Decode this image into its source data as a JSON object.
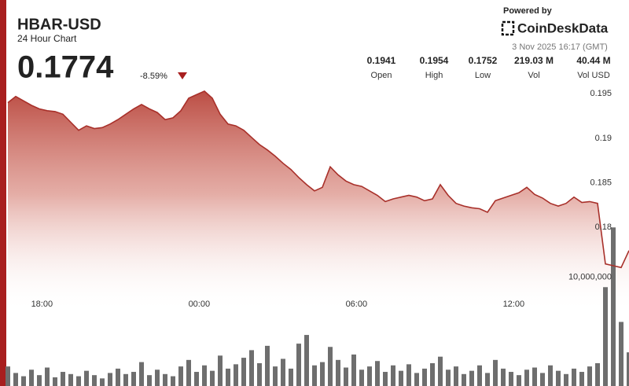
{
  "header": {
    "title": "HBAR-USD",
    "subtitle": "24 Hour Chart",
    "price": "0.1774",
    "change": "-8.59%",
    "powered_by": "Powered by",
    "brand": "CoinDeskData",
    "timestamp": "3 Nov 2025 16:17 (GMT)",
    "stats": [
      {
        "value": "0.1941",
        "label": "Open"
      },
      {
        "value": "0.1954",
        "label": "High"
      },
      {
        "value": "0.1752",
        "label": "Low"
      },
      {
        "value": "219.03 M",
        "label": "Vol"
      },
      {
        "value": "40.44 M",
        "label": "Vol USD"
      }
    ]
  },
  "chart_data": {
    "type": "line",
    "x": [
      16.7,
      17,
      17.3,
      17.6,
      17.9,
      18.2,
      18.5,
      18.8,
      19.1,
      19.4,
      19.7,
      20,
      20.3,
      20.6,
      20.9,
      21.2,
      21.5,
      21.8,
      22.1,
      22.4,
      22.7,
      23,
      23.3,
      23.6,
      23.9,
      24.2,
      24.5,
      24.8,
      25.1,
      25.4,
      25.7,
      26,
      26.3,
      26.6,
      26.9,
      27.2,
      27.5,
      27.8,
      28.1,
      28.4,
      28.7,
      29,
      29.3,
      29.6,
      29.9,
      30.2,
      30.5,
      30.8,
      31.1,
      31.4,
      31.7,
      32,
      32.3,
      32.6,
      32.9,
      33.2,
      33.5,
      33.8,
      34.1,
      34.4,
      34.7,
      35,
      35.3,
      35.6,
      35.9,
      36.2,
      36.5,
      36.8,
      37.1,
      37.4,
      37.7,
      38,
      38.3,
      38.6,
      38.9,
      39.2,
      39.5,
      39.8,
      40.1,
      40.4
    ],
    "xlim": [
      16.7,
      40.4
    ],
    "xticks": [
      {
        "value": 18,
        "label": "18:00"
      },
      {
        "value": 24,
        "label": "00:00"
      },
      {
        "value": 30,
        "label": "06:00"
      },
      {
        "value": 36,
        "label": "12:00"
      }
    ],
    "ylim": [
      0.1622,
      0.1967
    ],
    "yticks": [
      0.18,
      0.185,
      0.19,
      0.195
    ],
    "y2lim": [
      0,
      28300000
    ],
    "y2ticks": [
      {
        "value": 10000000,
        "label": "10,000,000"
      }
    ],
    "grid": false,
    "series": [
      {
        "color": "#a8302a",
        "values": [
          0.194,
          0.1947,
          0.1942,
          0.1937,
          0.1933,
          0.1931,
          0.193,
          0.1927,
          0.1918,
          0.1909,
          0.1914,
          0.1911,
          0.1912,
          0.1916,
          0.1921,
          0.1927,
          0.1933,
          0.1938,
          0.1933,
          0.1929,
          0.1921,
          0.1923,
          0.1931,
          0.1945,
          0.1949,
          0.1953,
          0.1945,
          0.1927,
          0.1916,
          0.1914,
          0.1909,
          0.1901,
          0.1893,
          0.1887,
          0.188,
          0.1872,
          0.1865,
          0.1856,
          0.1848,
          0.1841,
          0.1845,
          0.1868,
          0.1859,
          0.1852,
          0.1848,
          0.1846,
          0.1841,
          0.1836,
          0.1829,
          0.1832,
          0.1834,
          0.1836,
          0.1834,
          0.183,
          0.1832,
          0.1848,
          0.1836,
          0.1827,
          0.1824,
          0.1822,
          0.1821,
          0.1817,
          0.183,
          0.1833,
          0.1836,
          0.1839,
          0.1845,
          0.1837,
          0.1833,
          0.1827,
          0.1824,
          0.1827,
          0.1834,
          0.1828,
          0.1829,
          0.1827,
          0.1759,
          0.1757,
          0.1755,
          0.1774
        ]
      },
      {
        "type": "bar",
        "axis": "y2",
        "color": "#6e6e6e",
        "values": [
          1800000,
          1200000,
          900000,
          1500000,
          1000000,
          1700000,
          800000,
          1300000,
          1100000,
          900000,
          1400000,
          1000000,
          700000,
          1200000,
          1600000,
          1100000,
          1300000,
          2200000,
          1000000,
          1500000,
          1100000,
          900000,
          1800000,
          2400000,
          1300000,
          1900000,
          1400000,
          2800000,
          1600000,
          2000000,
          2600000,
          3300000,
          2100000,
          3700000,
          1800000,
          2500000,
          1600000,
          3900000,
          4700000,
          1900000,
          2200000,
          3600000,
          2400000,
          1700000,
          2900000,
          1500000,
          1800000,
          2300000,
          1300000,
          1900000,
          1400000,
          2000000,
          1200000,
          1600000,
          2100000,
          2700000,
          1500000,
          1800000,
          1100000,
          1400000,
          1900000,
          1200000,
          2400000,
          1600000,
          1300000,
          1000000,
          1500000,
          1700000,
          1200000,
          1900000,
          1400000,
          1100000,
          1600000,
          1300000,
          1800000,
          2100000,
          9100000,
          14600000,
          5900000,
          3100000
        ]
      }
    ]
  }
}
